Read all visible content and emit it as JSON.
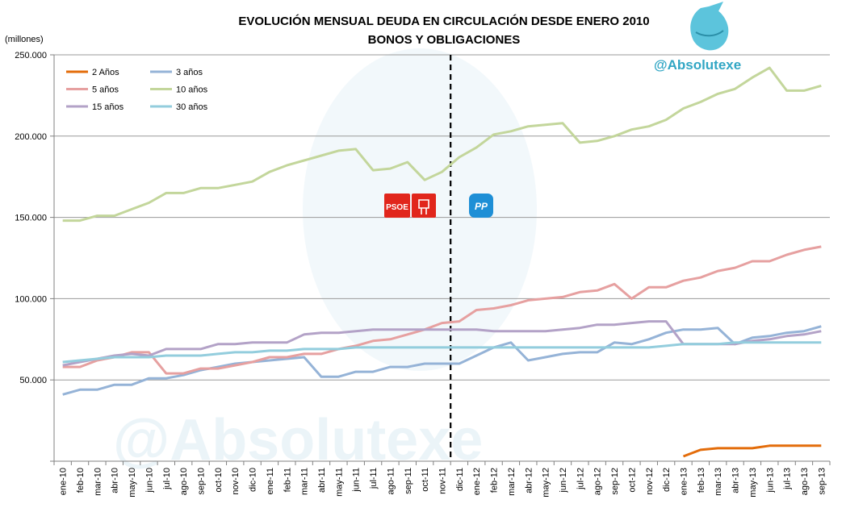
{
  "chart_data": {
    "type": "line",
    "title": "EVOLUCIÓN MENSUAL DEUDA EN CIRCULACIÓN DESDE ENERO 2010",
    "subtitle": "BONOS Y OBLIGACIONES",
    "ylabel": "(millones)",
    "ylim": [
      0,
      250000
    ],
    "yticks": [
      "",
      "50.000",
      "100.000",
      "150.000",
      "200.000",
      "250.000"
    ],
    "grid": true,
    "legend_position": "top-left",
    "marker_month": "nov-11",
    "categories": [
      "ene-10",
      "feb-10",
      "mar-10",
      "abr-10",
      "may-10",
      "jun-10",
      "jul-10",
      "ago-10",
      "sep-10",
      "oct-10",
      "nov-10",
      "dic-10",
      "ene-11",
      "feb-11",
      "mar-11",
      "abr-11",
      "may-11",
      "jun-11",
      "jul-11",
      "ago-11",
      "sep-11",
      "oct-11",
      "nov-11",
      "dic-11",
      "ene-12",
      "feb-12",
      "mar-12",
      "abr-12",
      "may-12",
      "jun-12",
      "jul-12",
      "ago-12",
      "sep-12",
      "oct-12",
      "nov-12",
      "dic-12",
      "ene-13",
      "feb-13",
      "mar-13",
      "abr-13",
      "may-13",
      "jun-13",
      "jul-13",
      "ago-13",
      "sep-13"
    ],
    "series": [
      {
        "name": "2 Años",
        "color": "#e36c0a",
        "values": [
          null,
          null,
          null,
          null,
          null,
          null,
          null,
          null,
          null,
          null,
          null,
          null,
          null,
          null,
          null,
          null,
          null,
          null,
          null,
          null,
          null,
          null,
          null,
          null,
          null,
          null,
          null,
          null,
          null,
          null,
          null,
          null,
          null,
          null,
          null,
          null,
          3000,
          7000,
          8000,
          8000,
          8000,
          9500,
          9500,
          9500,
          9500
        ]
      },
      {
        "name": "3 años",
        "color": "#95b3d7",
        "values": [
          41000,
          44000,
          44000,
          47000,
          47000,
          51000,
          51000,
          53000,
          56000,
          58000,
          60000,
          61000,
          62000,
          63000,
          64000,
          52000,
          52000,
          55000,
          55000,
          58000,
          58000,
          60000,
          60000,
          60000,
          65000,
          70000,
          73000,
          62000,
          64000,
          66000,
          67000,
          67000,
          73000,
          72000,
          75000,
          79000,
          81000,
          81000,
          82000,
          72000,
          76000,
          77000,
          79000,
          80000,
          83000
        ]
      },
      {
        "name": "5 años",
        "color": "#e6a0a0",
        "values": [
          58000,
          58000,
          62000,
          64000,
          67000,
          67000,
          54000,
          54000,
          57000,
          57000,
          59000,
          61000,
          64000,
          64000,
          66000,
          66000,
          69000,
          71000,
          74000,
          75000,
          78000,
          81000,
          85000,
          86000,
          93000,
          94000,
          96000,
          99000,
          100000,
          101000,
          104000,
          105000,
          109000,
          100000,
          107000,
          107000,
          111000,
          113000,
          117000,
          119000,
          123000,
          123000,
          127000,
          130000,
          132000
        ]
      },
      {
        "name": "10 años",
        "color": "#c3d69b",
        "values": [
          148000,
          148000,
          151000,
          151000,
          155000,
          159000,
          165000,
          165000,
          168000,
          168000,
          170000,
          172000,
          178000,
          182000,
          185000,
          188000,
          191000,
          192000,
          179000,
          180000,
          184000,
          173000,
          178000,
          187000,
          193000,
          201000,
          203000,
          206000,
          207000,
          208000,
          196000,
          197000,
          200000,
          204000,
          206000,
          210000,
          217000,
          221000,
          226000,
          229000,
          236000,
          242000,
          228000,
          228000,
          231000
        ]
      },
      {
        "name": "15 años",
        "color": "#b3a2c7",
        "values": [
          59000,
          61000,
          63000,
          65000,
          66000,
          65000,
          69000,
          69000,
          69000,
          72000,
          72000,
          73000,
          73000,
          73000,
          78000,
          79000,
          79000,
          80000,
          81000,
          81000,
          81000,
          81000,
          81000,
          81000,
          81000,
          80000,
          80000,
          80000,
          80000,
          81000,
          82000,
          84000,
          84000,
          85000,
          86000,
          86000,
          72000,
          72000,
          72000,
          72000,
          74000,
          75000,
          77000,
          78000,
          80000
        ]
      },
      {
        "name": "30 años",
        "color": "#93cddd",
        "values": [
          61000,
          62000,
          63000,
          64000,
          64000,
          64000,
          65000,
          65000,
          65000,
          66000,
          67000,
          67000,
          68000,
          68000,
          69000,
          69000,
          69000,
          70000,
          70000,
          70000,
          70000,
          70000,
          70000,
          70000,
          70000,
          70000,
          70000,
          70000,
          70000,
          70000,
          70000,
          70000,
          70000,
          70000,
          70000,
          71000,
          72000,
          72000,
          72000,
          73000,
          73000,
          73000,
          73000,
          73000,
          73000
        ]
      }
    ]
  },
  "brand": {
    "handle": "@Absolutexe",
    "handle_color": "#31a6c4",
    "watermark": "@Absolutexe"
  },
  "parties": {
    "left_logo_text": "PSOE",
    "left_color": "#e1261c",
    "right_logo_text": "PP",
    "right_color": "#1e8fd6"
  }
}
